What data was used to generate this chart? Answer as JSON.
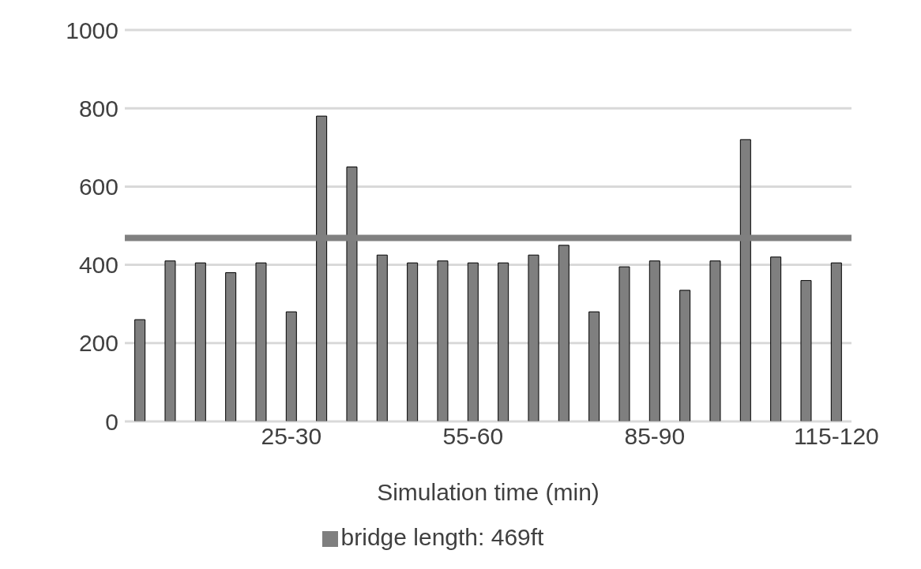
{
  "chart_data": {
    "type": "bar",
    "xlabel": "Simulation time (min)",
    "categories": [
      null,
      null,
      null,
      null,
      null,
      "25-30",
      null,
      null,
      null,
      null,
      null,
      "55-60",
      null,
      null,
      null,
      null,
      null,
      "85-90",
      null,
      null,
      null,
      null,
      null,
      "115-120"
    ],
    "series": [
      {
        "name": "bridge length: 469ft",
        "color": "#7f7f7f",
        "values": [
          260,
          410,
          405,
          380,
          405,
          280,
          780,
          650,
          425,
          405,
          410,
          405,
          405,
          425,
          450,
          280,
          395,
          410,
          335,
          410,
          720,
          420,
          360,
          405
        ]
      }
    ],
    "ref_lines": [
      {
        "axis": "y",
        "value": 469,
        "color": "#808080"
      }
    ],
    "ylim": [
      0,
      1000
    ],
    "yticks": [
      0,
      200,
      400,
      600,
      800,
      1000
    ],
    "grid": "y",
    "legend": "bottom"
  }
}
